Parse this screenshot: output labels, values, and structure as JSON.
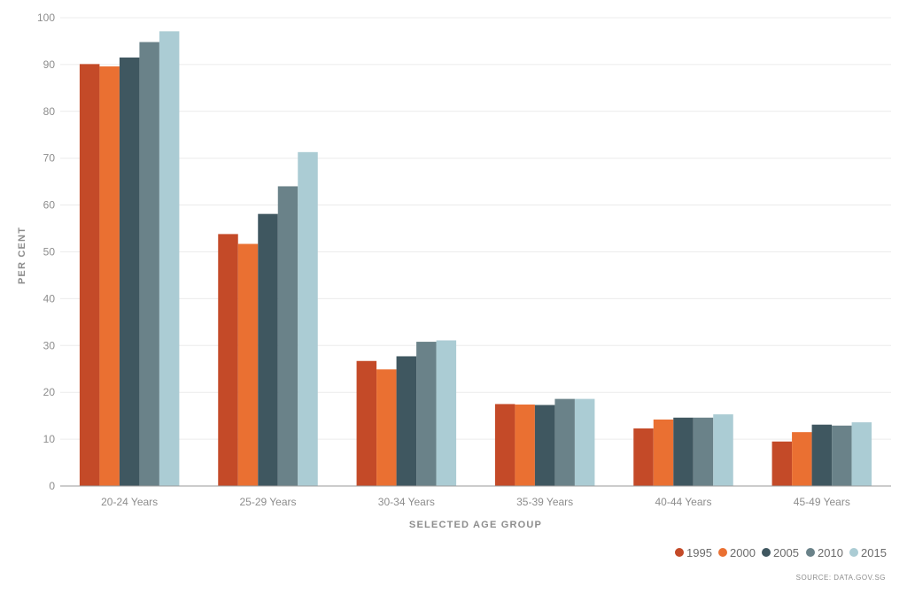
{
  "chart_data": {
    "type": "bar",
    "xlabel": "SELECTED AGE GROUP",
    "ylabel": "PER CENT",
    "ylim": [
      0,
      100
    ],
    "yticks": [
      0,
      10,
      20,
      30,
      40,
      50,
      60,
      70,
      80,
      90,
      100
    ],
    "grid": true,
    "legend_position": "bottom-right",
    "categories": [
      "20-24 Years",
      "25-29 Years",
      "30-34 Years",
      "35-39 Years",
      "40-44 Years",
      "45-49 Years"
    ],
    "series": [
      {
        "name": "1995",
        "color": "#c44a28",
        "values": [
          90.1,
          53.8,
          26.7,
          17.5,
          12.3,
          9.5
        ]
      },
      {
        "name": "2000",
        "color": "#ea7032",
        "values": [
          89.6,
          51.7,
          24.9,
          17.4,
          14.2,
          11.5
        ]
      },
      {
        "name": "2005",
        "color": "#3f5760",
        "values": [
          91.5,
          58.1,
          27.7,
          17.3,
          14.6,
          13.1
        ]
      },
      {
        "name": "2010",
        "color": "#6a8289",
        "values": [
          94.8,
          64.0,
          30.8,
          18.6,
          14.6,
          12.9
        ]
      },
      {
        "name": "2015",
        "color": "#abccd4",
        "values": [
          97.1,
          71.3,
          31.1,
          18.6,
          15.3,
          13.6
        ]
      }
    ],
    "source": "SOURCE: DATA.GOV.SG"
  }
}
